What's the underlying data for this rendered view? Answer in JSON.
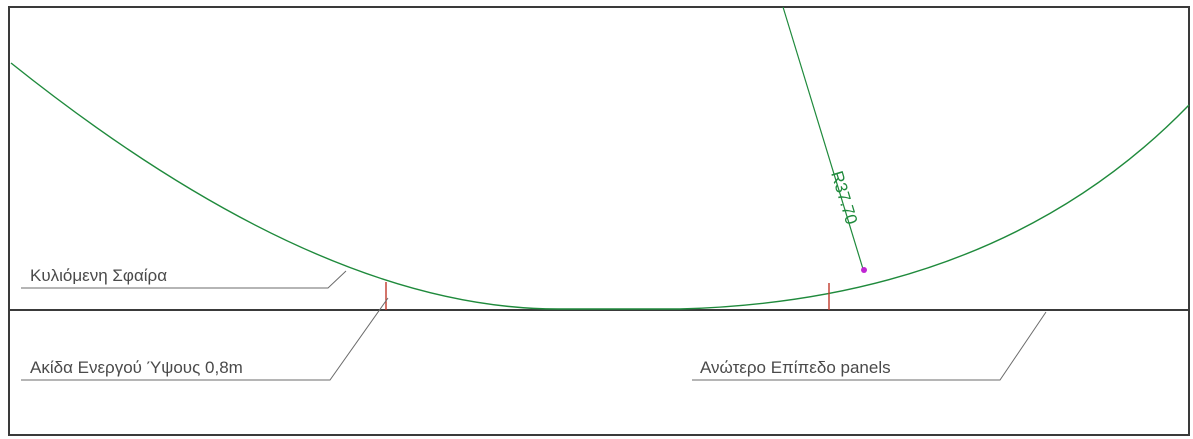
{
  "drawing": {
    "labels": {
      "rolling_sphere": "Κυλιόμενη Σφαίρα",
      "air_terminal": "Ακίδα Ενεργού Ύψους 0,8m",
      "panels_level": "Ανώτερο Επίπεδο panels"
    },
    "radius_label": "R37.70"
  },
  "colors": {
    "frame": "#3a3a3a",
    "arc": "#1f8a3c",
    "terminal": "#c0392b",
    "leader": "#6b6b6b",
    "text": "#4a4a4a",
    "marker": "#c026d3"
  }
}
